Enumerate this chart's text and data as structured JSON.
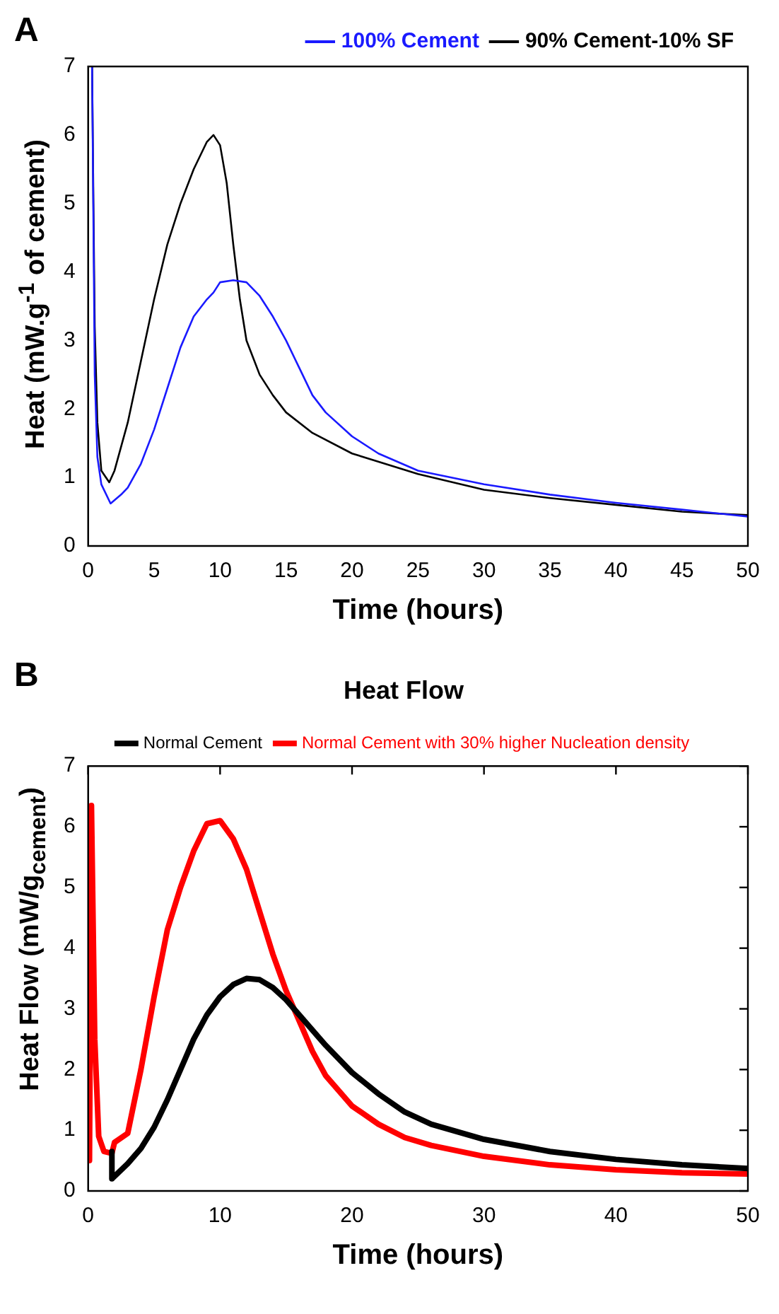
{
  "chart_data": [
    {
      "type": "line",
      "annotations": [
        "A"
      ],
      "xlabel": "Time (hours)",
      "ylabel": "Heat (mW.g$^{-1}$ of cement)",
      "xlim": [
        0,
        50
      ],
      "ylim": [
        0,
        7
      ],
      "xticks": [
        0,
        5,
        10,
        15,
        20,
        25,
        30,
        35,
        40,
        45,
        50
      ],
      "yticks": [
        0,
        1,
        2,
        3,
        4,
        5,
        6,
        7
      ],
      "grid": false,
      "legend": "top right",
      "marker": "none",
      "line_style": "solid",
      "series": [
        {
          "name": "100% Cement",
          "color": "#1a1aff",
          "x": [
            0.3,
            0.5,
            0.7,
            1,
            1.7,
            2.5,
            3,
            4,
            5,
            6,
            7,
            8,
            9,
            9.5,
            10,
            11,
            12,
            13,
            14,
            15,
            16,
            17,
            18,
            20,
            22,
            25,
            30,
            35,
            40,
            45,
            50
          ],
          "values": [
            7,
            2.5,
            1.3,
            0.9,
            0.62,
            0.75,
            0.85,
            1.2,
            1.7,
            2.3,
            2.9,
            3.35,
            3.6,
            3.7,
            3.85,
            3.88,
            3.85,
            3.65,
            3.35,
            3,
            2.6,
            2.2,
            1.95,
            1.6,
            1.35,
            1.1,
            0.9,
            0.75,
            0.63,
            0.53,
            0.43
          ]
        },
        {
          "name": "90% Cement-10% SF",
          "color": "#000000",
          "x": [
            0.3,
            0.4,
            0.5,
            0.7,
            1,
            1.6,
            2,
            3,
            4,
            5,
            6,
            7,
            8,
            9,
            9.5,
            10,
            10.5,
            11,
            11.5,
            12,
            13,
            14,
            15,
            17,
            20,
            25,
            30,
            35,
            40,
            45,
            50
          ],
          "values": [
            7,
            5,
            3.2,
            1.8,
            1.1,
            0.93,
            1.1,
            1.8,
            2.7,
            3.6,
            4.4,
            5,
            5.5,
            5.9,
            6,
            5.85,
            5.3,
            4.4,
            3.6,
            3,
            2.5,
            2.2,
            1.95,
            1.65,
            1.35,
            1.05,
            0.82,
            0.7,
            0.6,
            0.5,
            0.45
          ]
        }
      ]
    },
    {
      "type": "line",
      "annotations": [
        "B"
      ],
      "title": "Heat Flow",
      "xlabel": "Time (hours)",
      "ylabel": "Heat Flow (mW/g$_{cement}$)",
      "xlim": [
        0,
        50
      ],
      "ylim": [
        0,
        7
      ],
      "xticks": [
        0,
        10,
        20,
        30,
        40,
        50
      ],
      "yticks": [
        0,
        1,
        2,
        3,
        4,
        5,
        6,
        7
      ],
      "grid": false,
      "legend": "top",
      "marker": "none",
      "line_style": "solid",
      "series": [
        {
          "name": "Normal Cement",
          "color": "#000000",
          "x": [
            1.8,
            1.8,
            3,
            4,
            5,
            6,
            7,
            8,
            9,
            10,
            11,
            12,
            13,
            14,
            15,
            16,
            18,
            20,
            22,
            24,
            26,
            30,
            35,
            40,
            45,
            50
          ],
          "values": [
            0.65,
            0.2,
            0.45,
            0.7,
            1.05,
            1.5,
            2,
            2.5,
            2.9,
            3.2,
            3.4,
            3.5,
            3.48,
            3.35,
            3.15,
            2.9,
            2.4,
            1.95,
            1.6,
            1.3,
            1.1,
            0.85,
            0.65,
            0.52,
            0.43,
            0.37
          ]
        },
        {
          "name": "Normal Cement with 30% higher Nucleation density",
          "color": "#ff0000",
          "x": [
            0.1,
            0.25,
            0.5,
            0.8,
            1.2,
            1.8,
            2,
            3,
            4,
            5,
            6,
            7,
            8,
            9,
            10,
            11,
            12,
            13,
            14,
            15,
            16,
            17,
            18,
            20,
            22,
            24,
            26,
            30,
            35,
            40,
            45,
            50
          ],
          "values": [
            0.5,
            6.35,
            2.5,
            0.9,
            0.65,
            0.62,
            0.8,
            0.95,
            2,
            3.2,
            4.3,
            5,
            5.6,
            6.05,
            6.1,
            5.8,
            5.3,
            4.6,
            3.9,
            3.3,
            2.8,
            2.3,
            1.9,
            1.4,
            1.1,
            0.88,
            0.75,
            0.57,
            0.43,
            0.35,
            0.3,
            0.28
          ]
        }
      ]
    }
  ]
}
